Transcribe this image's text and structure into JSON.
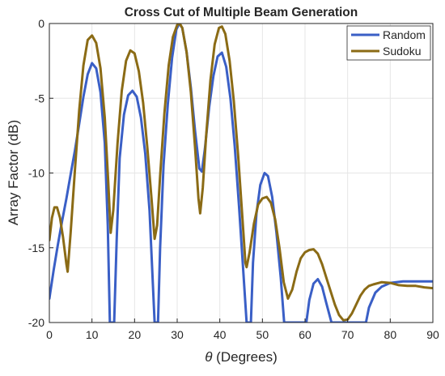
{
  "chart_data": {
    "type": "line",
    "title": "Cross Cut of Multiple Beam Generation",
    "xlabel_symbol": "θ",
    "xlabel_rest": " (Degrees)",
    "ylabel": "Array Factor (dB)",
    "xlim": [
      0,
      90
    ],
    "ylim": [
      -20,
      0
    ],
    "xticks": [
      0,
      10,
      20,
      30,
      40,
      50,
      60,
      70,
      80,
      90
    ],
    "yticks": [
      0,
      -5,
      -10,
      -15,
      -20
    ],
    "grid": true,
    "legend_position": "top-right",
    "series": [
      {
        "name": "Random",
        "color": "#3a5fc6",
        "points": [
          [
            0,
            -18.4
          ],
          [
            1,
            -16.5
          ],
          [
            2,
            -14.8
          ],
          [
            3,
            -13.2
          ],
          [
            4,
            -11.7
          ],
          [
            5,
            -10.1
          ],
          [
            6,
            -8.5
          ],
          [
            7,
            -6.7
          ],
          [
            8,
            -4.9
          ],
          [
            9,
            -3.4
          ],
          [
            10,
            -2.65
          ],
          [
            11,
            -3.0
          ],
          [
            12,
            -4.6
          ],
          [
            13,
            -8.0
          ],
          [
            13.7,
            -13.5
          ],
          [
            14.2,
            -20
          ],
          [
            15.2,
            -20
          ],
          [
            15.8,
            -14.5
          ],
          [
            16.5,
            -9.0
          ],
          [
            17.5,
            -6.1
          ],
          [
            18.5,
            -4.8
          ],
          [
            19.5,
            -4.5
          ],
          [
            20.5,
            -4.9
          ],
          [
            21.5,
            -6.3
          ],
          [
            22.5,
            -8.7
          ],
          [
            23.5,
            -12.5
          ],
          [
            24.3,
            -17.5
          ],
          [
            24.7,
            -20
          ],
          [
            25.5,
            -20
          ],
          [
            26,
            -15.0
          ],
          [
            26.8,
            -9.5
          ],
          [
            27.8,
            -5.4
          ],
          [
            28.8,
            -2.3
          ],
          [
            29.8,
            -0.4
          ],
          [
            30.5,
            0
          ],
          [
            31.2,
            -0.3
          ],
          [
            32.2,
            -1.9
          ],
          [
            33.2,
            -4.3
          ],
          [
            34.2,
            -7.2
          ],
          [
            35.2,
            -9.7
          ],
          [
            35.8,
            -9.9
          ],
          [
            36.5,
            -8.4
          ],
          [
            37.5,
            -5.6
          ],
          [
            38.5,
            -3.5
          ],
          [
            39.5,
            -2.2
          ],
          [
            40.5,
            -1.95
          ],
          [
            41.5,
            -2.9
          ],
          [
            42.5,
            -5.0
          ],
          [
            43.5,
            -8.2
          ],
          [
            44.5,
            -12.2
          ],
          [
            45.5,
            -16.5
          ],
          [
            46.3,
            -20
          ],
          [
            47.3,
            -20
          ],
          [
            47.8,
            -16.0
          ],
          [
            48.6,
            -12.7
          ],
          [
            49.5,
            -10.8
          ],
          [
            50.5,
            -10.0
          ],
          [
            51.3,
            -10.2
          ],
          [
            52.3,
            -11.6
          ],
          [
            53.3,
            -14.0
          ],
          [
            54.3,
            -17.0
          ],
          [
            55.1,
            -20
          ],
          [
            60.3,
            -20
          ],
          [
            61,
            -18.5
          ],
          [
            62,
            -17.4
          ],
          [
            63,
            -17.1
          ],
          [
            64,
            -17.6
          ],
          [
            65,
            -18.7
          ],
          [
            66.2,
            -20
          ],
          [
            74.3,
            -20
          ],
          [
            75,
            -19.0
          ],
          [
            76.5,
            -18.0
          ],
          [
            78,
            -17.6
          ],
          [
            80,
            -17.35
          ],
          [
            83,
            -17.25
          ],
          [
            86,
            -17.25
          ],
          [
            90,
            -17.25
          ]
        ]
      },
      {
        "name": "Sudoku",
        "color": "#8b6b15",
        "points": [
          [
            0,
            -14.5
          ],
          [
            0.6,
            -13.0
          ],
          [
            1.2,
            -12.3
          ],
          [
            1.8,
            -12.3
          ],
          [
            2.5,
            -13.0
          ],
          [
            3.2,
            -14.3
          ],
          [
            4,
            -16.1
          ],
          [
            4.3,
            -16.6
          ],
          [
            5,
            -14.0
          ],
          [
            6,
            -9.8
          ],
          [
            7,
            -5.8
          ],
          [
            8,
            -2.8
          ],
          [
            9,
            -1.1
          ],
          [
            10,
            -0.8
          ],
          [
            11,
            -1.3
          ],
          [
            12,
            -3.0
          ],
          [
            13,
            -6.3
          ],
          [
            13.8,
            -10.5
          ],
          [
            14.4,
            -14.0
          ],
          [
            15,
            -12.5
          ],
          [
            16,
            -8.0
          ],
          [
            17,
            -4.5
          ],
          [
            18,
            -2.5
          ],
          [
            19,
            -1.8
          ],
          [
            20,
            -2.0
          ],
          [
            21,
            -3.2
          ],
          [
            22,
            -5.3
          ],
          [
            23,
            -8.3
          ],
          [
            24,
            -11.8
          ],
          [
            24.7,
            -14.4
          ],
          [
            25.3,
            -13.5
          ],
          [
            26,
            -10.2
          ],
          [
            27,
            -6.0
          ],
          [
            28,
            -2.8
          ],
          [
            29,
            -0.9
          ],
          [
            30,
            -0.1
          ],
          [
            30.6,
            0
          ],
          [
            31.2,
            -0.3
          ],
          [
            32.2,
            -1.9
          ],
          [
            33.2,
            -4.6
          ],
          [
            34.2,
            -8.3
          ],
          [
            35,
            -11.7
          ],
          [
            35.4,
            -12.7
          ],
          [
            36,
            -11.0
          ],
          [
            36.8,
            -7.5
          ],
          [
            37.8,
            -3.8
          ],
          [
            38.8,
            -1.4
          ],
          [
            39.8,
            -0.3
          ],
          [
            40.5,
            -0.2
          ],
          [
            41.3,
            -0.7
          ],
          [
            42.3,
            -2.5
          ],
          [
            43.3,
            -5.2
          ],
          [
            44.3,
            -8.8
          ],
          [
            45.3,
            -13.0
          ],
          [
            46,
            -16.0
          ],
          [
            46.3,
            -16.3
          ],
          [
            47,
            -15.3
          ],
          [
            48,
            -13.4
          ],
          [
            49,
            -12.1
          ],
          [
            50,
            -11.7
          ],
          [
            51,
            -11.6
          ],
          [
            52,
            -12.0
          ],
          [
            53,
            -13.1
          ],
          [
            54,
            -15.0
          ],
          [
            55,
            -17.3
          ],
          [
            56,
            -18.4
          ],
          [
            57,
            -17.8
          ],
          [
            58,
            -16.6
          ],
          [
            59,
            -15.7
          ],
          [
            60,
            -15.3
          ],
          [
            61,
            -15.15
          ],
          [
            62,
            -15.1
          ],
          [
            63,
            -15.4
          ],
          [
            64,
            -16.1
          ],
          [
            65,
            -17.0
          ],
          [
            66,
            -17.9
          ],
          [
            67,
            -18.8
          ],
          [
            68,
            -19.5
          ],
          [
            69,
            -19.85
          ],
          [
            70,
            -19.8
          ],
          [
            71,
            -19.4
          ],
          [
            72,
            -18.8
          ],
          [
            73,
            -18.2
          ],
          [
            74,
            -17.8
          ],
          [
            75,
            -17.55
          ],
          [
            76,
            -17.45
          ],
          [
            78,
            -17.3
          ],
          [
            80,
            -17.35
          ],
          [
            82,
            -17.5
          ],
          [
            84,
            -17.55
          ],
          [
            86,
            -17.55
          ],
          [
            88,
            -17.65
          ],
          [
            90,
            -17.7
          ]
        ]
      }
    ]
  }
}
